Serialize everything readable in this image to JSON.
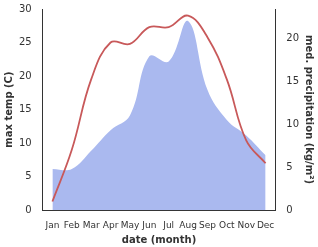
{
  "chart_data": {
    "type": "line",
    "xlabel": "date (month)",
    "ylabel": "max temp (C)",
    "y2label": "med. precipitation (kg/m²)",
    "categories": [
      "Jan",
      "Feb",
      "Mar",
      "Apr",
      "May",
      "Jun",
      "Jul",
      "Aug",
      "Sep",
      "Oct",
      "Nov",
      "Dec"
    ],
    "series": [
      {
        "type": "area",
        "axis": "y2",
        "color": "#aab9ef",
        "values": [
          4.8,
          4.8,
          6.9,
          9.3,
          11,
          17.9,
          17.3,
          22,
          14,
          10.5,
          8.7,
          6.4
        ]
      },
      {
        "type": "line",
        "color": "#c8595a",
        "values": [
          1.3,
          9,
          19.5,
          25,
          24.8,
          27.3,
          27.3,
          29,
          25.8,
          19.5,
          10.4,
          7
        ]
      }
    ],
    "ylim": [
      0,
      30
    ],
    "yticks": [
      0,
      5,
      10,
      15,
      20,
      25,
      30
    ],
    "y2lim": [
      0,
      23.4
    ],
    "y2ticks": [
      0,
      5,
      10,
      15,
      20
    ],
    "grid": false
  }
}
